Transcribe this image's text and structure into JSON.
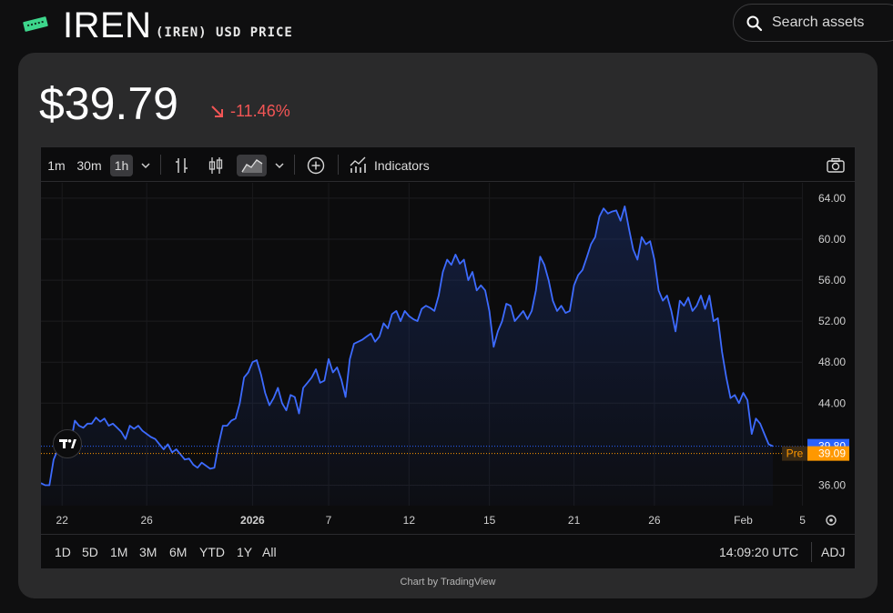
{
  "header": {
    "ticker": "IREN",
    "subtitle": "(IREN) USD PRICE",
    "search_placeholder": "Search assets"
  },
  "quote": {
    "price": "$39.79",
    "change": "-11.46%",
    "change_color": "#f25555"
  },
  "toolbar": {
    "intervals": [
      "1m",
      "30m",
      "1h"
    ],
    "active_interval": "1h",
    "indicators_label": "Indicators"
  },
  "ranges": [
    "1D",
    "5D",
    "1M",
    "3M",
    "6M",
    "YTD",
    "1Y",
    "All"
  ],
  "footer": {
    "time": "14:09:20 UTC",
    "adj": "ADJ",
    "credit": "Chart by TradingView"
  },
  "colors": {
    "line": "#3d6bff",
    "last_price_badge": "#2962ff",
    "pre_badge": "#ff9800"
  },
  "chart_data": {
    "type": "area",
    "x_tick_labels": [
      "22",
      "26",
      "2026",
      "7",
      "12",
      "15",
      "21",
      "26",
      "Feb",
      "5"
    ],
    "y_tick_labels": [
      "64.00",
      "60.00",
      "56.00",
      "52.00",
      "48.00",
      "44.00",
      "36.00"
    ],
    "ylim": [
      34.0,
      65.5
    ],
    "last_price": 39.8,
    "last_price_label": "39.80",
    "pre_label": "Pre",
    "pre_price": 39.09,
    "pre_price_label": "39.09",
    "series": [
      {
        "values": [
          36.2,
          36.0,
          36.0,
          38.5,
          39.5,
          39.2,
          40.0,
          40.0,
          42.3,
          41.8,
          41.6,
          42.0,
          42.0,
          42.6,
          42.2,
          42.5,
          41.8,
          42.0,
          41.6,
          41.2,
          40.5,
          41.8,
          41.5,
          41.8,
          41.3,
          41.0,
          40.7,
          40.5,
          40.0,
          39.5,
          40.0,
          39.2,
          39.5,
          39.0,
          38.5,
          38.6,
          38.0,
          37.7,
          38.2,
          37.9,
          37.6,
          37.7,
          40.0,
          41.8,
          41.8,
          42.3,
          42.5,
          44.0,
          46.5,
          47.0,
          48.0,
          48.2,
          46.8,
          45.0,
          43.8,
          44.5,
          45.5,
          44.0,
          43.3,
          44.8,
          44.6,
          43.0,
          45.5,
          46.0,
          46.5,
          47.3,
          46.0,
          46.2,
          48.3,
          47.0,
          47.5,
          46.3,
          44.6,
          48.3,
          49.8,
          50.0,
          50.2,
          50.5,
          50.8,
          50.0,
          50.5,
          51.8,
          51.3,
          52.7,
          53.0,
          52.0,
          53.0,
          52.5,
          52.2,
          52.0,
          53.2,
          53.5,
          53.3,
          53.0,
          54.5,
          56.8,
          58.0,
          57.5,
          58.5,
          57.6,
          58.0,
          56.0,
          56.8,
          55.0,
          55.5,
          55.0,
          53.0,
          49.5,
          51.0,
          52.0,
          53.7,
          53.5,
          52.0,
          52.5,
          53.0,
          52.2,
          53.0,
          55.0,
          58.3,
          57.5,
          56.0,
          54.0,
          53.0,
          53.5,
          52.8,
          53.0,
          55.5,
          56.5,
          57.0,
          58.2,
          59.5,
          60.2,
          62.2,
          63.0,
          62.5,
          62.7,
          62.8,
          61.8,
          63.2,
          61.0,
          59.0,
          58.0,
          60.2,
          59.5,
          59.8,
          58.0,
          55.0,
          54.0,
          54.5,
          53.0,
          51.0,
          54.0,
          53.5,
          54.3,
          53.0,
          53.5,
          54.5,
          53.2,
          54.5,
          52.0,
          52.3,
          49.0,
          46.5,
          44.5,
          44.8,
          44.0,
          45.0,
          44.3,
          41.0,
          42.5,
          42.0,
          41.0,
          40.0,
          39.8
        ]
      }
    ]
  }
}
